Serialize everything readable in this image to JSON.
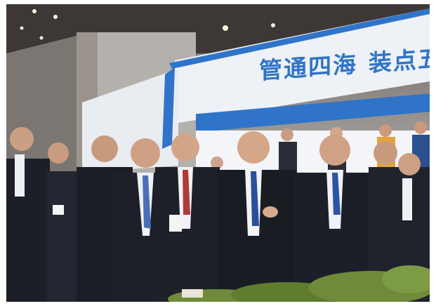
{
  "photo": {
    "banner_text_part1": "管通四海",
    "banner_text_part2": "装点五洲",
    "side_sign_text": "",
    "colors": {
      "banner_blue": "#2f74c9",
      "booth_white": "#eef1f5",
      "suit_dark": "#1c1f27",
      "floor_blue": "#3c7fbf",
      "model_green": "#6f8b3a"
    }
  }
}
